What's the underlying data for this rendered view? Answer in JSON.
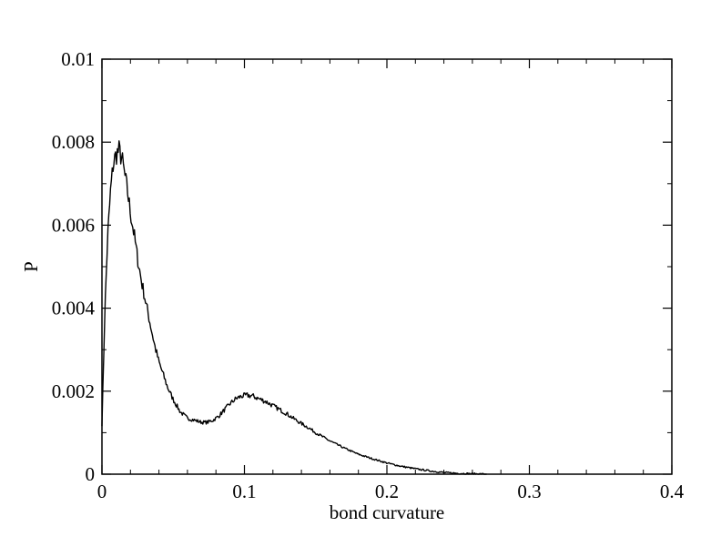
{
  "chart_data": {
    "type": "line",
    "title": "",
    "xlabel": "bond curvature",
    "ylabel": "P",
    "xlim": [
      0,
      0.4
    ],
    "ylim": [
      0,
      0.01
    ],
    "x_ticks": [
      0,
      0.1,
      0.2,
      0.3,
      0.4
    ],
    "x_tick_labels": [
      "0",
      "0.1",
      "0.2",
      "0.3",
      "0.4"
    ],
    "y_ticks": [
      0,
      0.002,
      0.004,
      0.006,
      0.008,
      0.01
    ],
    "y_tick_labels": [
      "0",
      "0.002",
      "0.004",
      "0.006",
      "0.008",
      "0.01"
    ],
    "x_minor_step": 0.02,
    "y_minor_step": 0.001,
    "grid": false,
    "legend": "none",
    "line_color": "#000000",
    "series": [
      {
        "x": [
          0,
          0.002,
          0.004,
          0.006,
          0.008,
          0.01,
          0.012,
          0.014,
          0.016,
          0.018,
          0.02,
          0.022,
          0.025,
          0.028,
          0.031,
          0.034,
          0.037,
          0.04,
          0.043,
          0.046,
          0.05,
          0.055,
          0.06,
          0.065,
          0.07,
          0.074,
          0.078,
          0.082,
          0.086,
          0.09,
          0.094,
          0.098,
          0.102,
          0.106,
          0.11,
          0.115,
          0.12,
          0.125,
          0.13,
          0.135,
          0.14,
          0.145,
          0.15,
          0.16,
          0.17,
          0.18,
          0.19,
          0.2,
          0.21,
          0.22,
          0.23,
          0.24,
          0.25,
          0.26,
          0.27
        ],
        "values": [
          0.0012,
          0.0039,
          0.0057,
          0.0068,
          0.0075,
          0.0077,
          0.0078,
          0.0076,
          0.0072,
          0.0068,
          0.0063,
          0.0059,
          0.0052,
          0.0046,
          0.0041,
          0.0036,
          0.0031,
          0.0027,
          0.0024,
          0.0021,
          0.0018,
          0.0015,
          0.00135,
          0.0013,
          0.00125,
          0.00125,
          0.0013,
          0.0014,
          0.00155,
          0.0017,
          0.00182,
          0.00188,
          0.0019,
          0.00188,
          0.00182,
          0.00175,
          0.00165,
          0.00155,
          0.00145,
          0.00133,
          0.00122,
          0.00112,
          0.001,
          0.0008,
          0.00063,
          0.00048,
          0.00037,
          0.00027,
          0.00019,
          0.00013,
          8e-05,
          4e-05,
          2e-05,
          1e-05,
          0
        ]
      }
    ]
  }
}
